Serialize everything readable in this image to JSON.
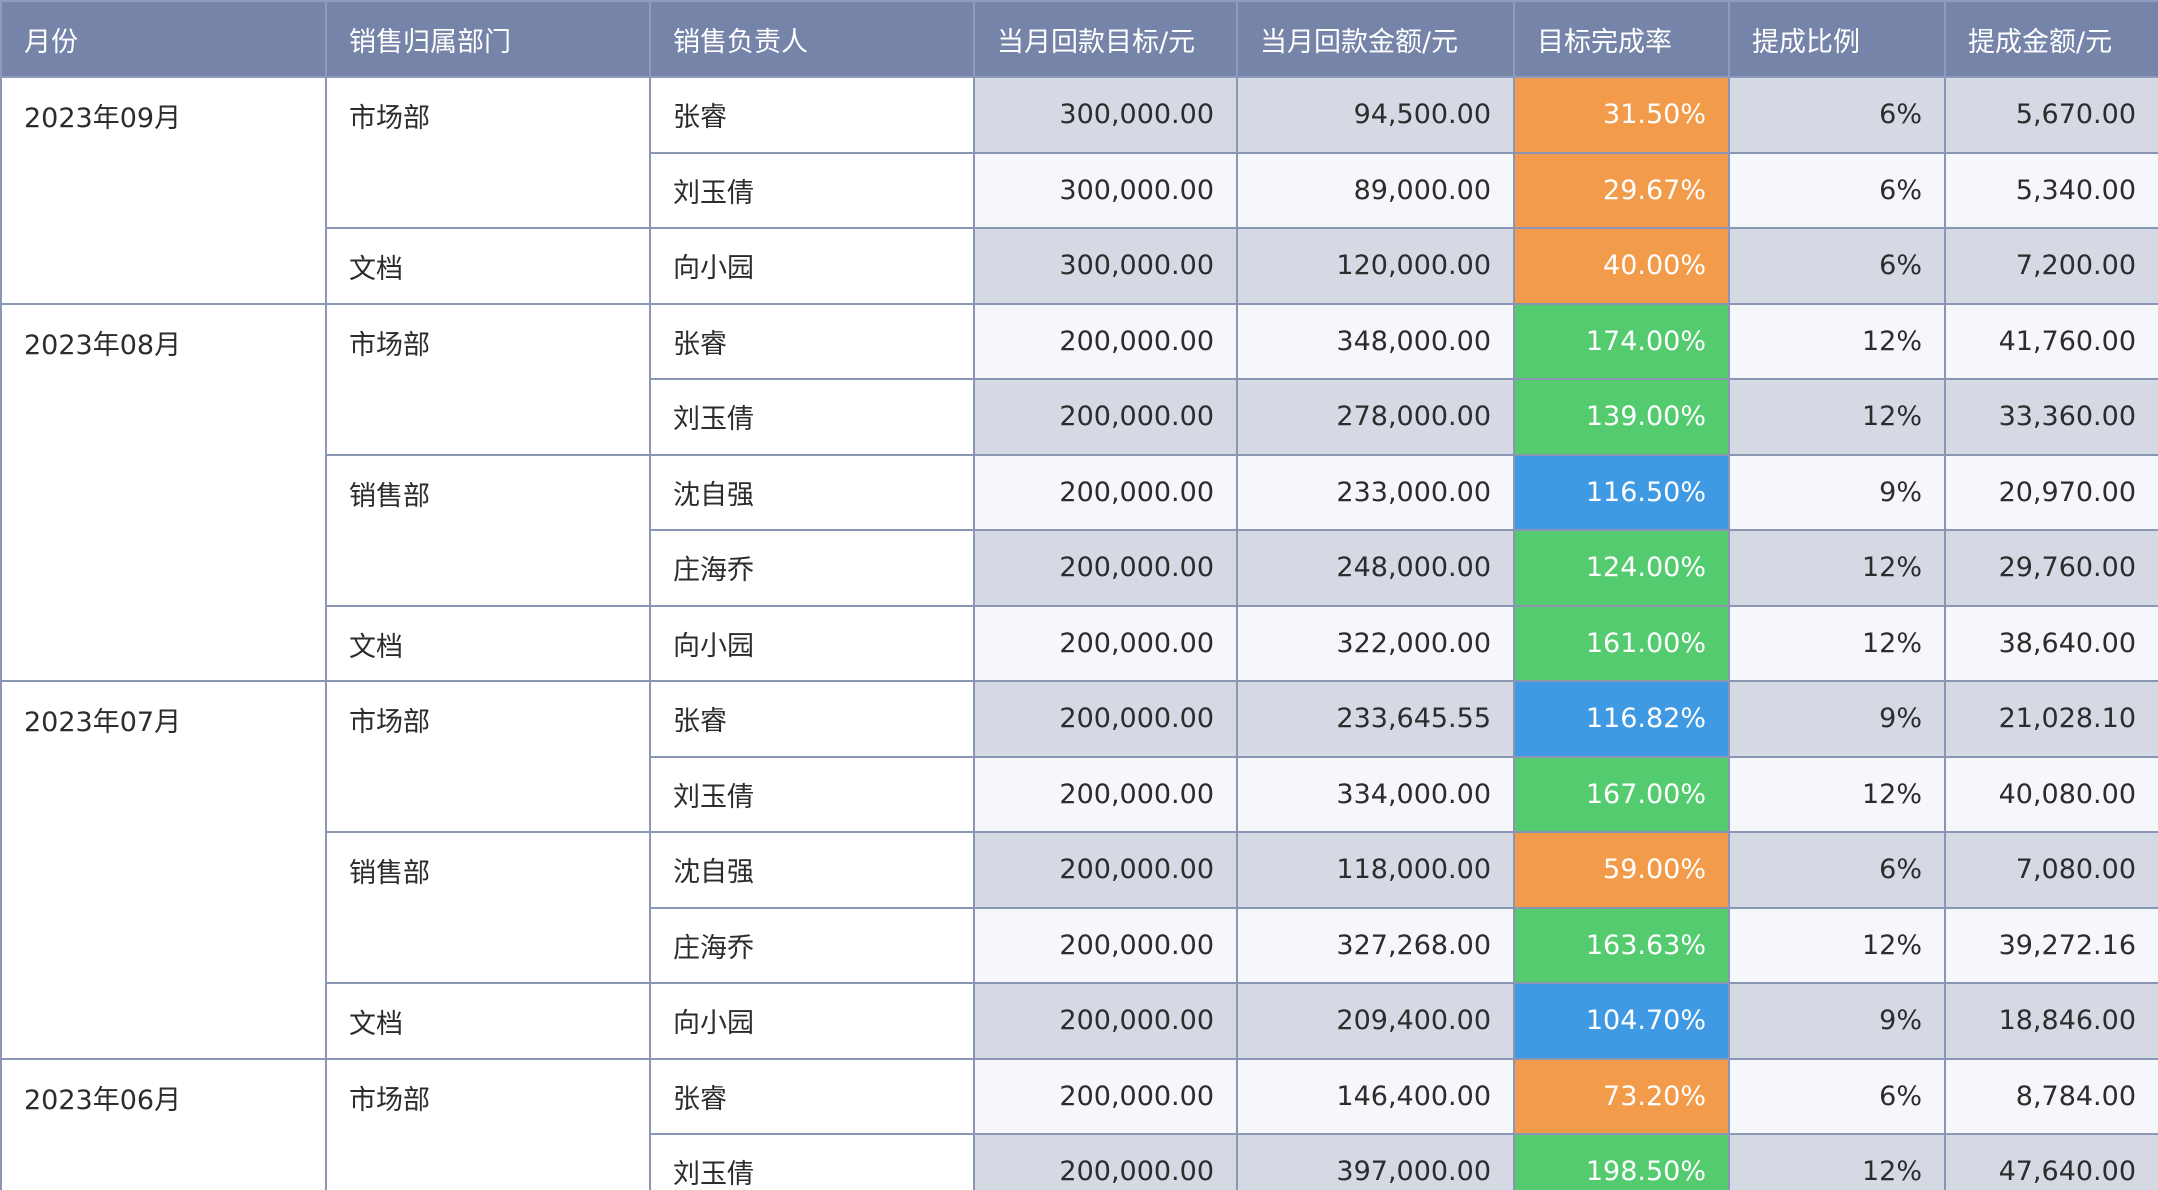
{
  "headers": {
    "month": "月份",
    "dept": "销售归属部门",
    "person": "销售负责人",
    "target": "当月回款目标/元",
    "amount": "当月回款金额/元",
    "rate": "目标完成率",
    "ratio": "提成比例",
    "commission": "提成金额/元"
  },
  "colors": {
    "header_bg": "#7584a8",
    "rate_low": "#f29b4b",
    "rate_mid": "#3f9ae3",
    "rate_high": "#55cb70",
    "stripe_dark": "#d5d9e3",
    "stripe_light": "#f5f7fa"
  },
  "months": [
    {
      "label": "2023年09月"
    },
    {
      "label": "2023年08月"
    },
    {
      "label": "2023年07月"
    },
    {
      "label": "2023年06月"
    }
  ],
  "depts": [
    {
      "label": "市场部"
    },
    {
      "label": "文档"
    },
    {
      "label": "市场部"
    },
    {
      "label": "销售部"
    },
    {
      "label": "文档"
    },
    {
      "label": "市场部"
    },
    {
      "label": "销售部"
    },
    {
      "label": "文档"
    },
    {
      "label": "市场部"
    }
  ],
  "rows": [
    {
      "person": "张睿",
      "target": "300,000.00",
      "amount": "94,500.00",
      "rate": "31.50%",
      "rate_level": "low",
      "ratio": "6%",
      "commission": "5,670.00"
    },
    {
      "person": "刘玉倩",
      "target": "300,000.00",
      "amount": "89,000.00",
      "rate": "29.67%",
      "rate_level": "low",
      "ratio": "6%",
      "commission": "5,340.00"
    },
    {
      "person": "向小园",
      "target": "300,000.00",
      "amount": "120,000.00",
      "rate": "40.00%",
      "rate_level": "low",
      "ratio": "6%",
      "commission": "7,200.00"
    },
    {
      "person": "张睿",
      "target": "200,000.00",
      "amount": "348,000.00",
      "rate": "174.00%",
      "rate_level": "high",
      "ratio": "12%",
      "commission": "41,760.00"
    },
    {
      "person": "刘玉倩",
      "target": "200,000.00",
      "amount": "278,000.00",
      "rate": "139.00%",
      "rate_level": "high",
      "ratio": "12%",
      "commission": "33,360.00"
    },
    {
      "person": "沈自强",
      "target": "200,000.00",
      "amount": "233,000.00",
      "rate": "116.50%",
      "rate_level": "mid",
      "ratio": "9%",
      "commission": "20,970.00"
    },
    {
      "person": "庄海乔",
      "target": "200,000.00",
      "amount": "248,000.00",
      "rate": "124.00%",
      "rate_level": "high",
      "ratio": "12%",
      "commission": "29,760.00"
    },
    {
      "person": "向小园",
      "target": "200,000.00",
      "amount": "322,000.00",
      "rate": "161.00%",
      "rate_level": "high",
      "ratio": "12%",
      "commission": "38,640.00"
    },
    {
      "person": "张睿",
      "target": "200,000.00",
      "amount": "233,645.55",
      "rate": "116.82%",
      "rate_level": "mid",
      "ratio": "9%",
      "commission": "21,028.10"
    },
    {
      "person": "刘玉倩",
      "target": "200,000.00",
      "amount": "334,000.00",
      "rate": "167.00%",
      "rate_level": "high",
      "ratio": "12%",
      "commission": "40,080.00"
    },
    {
      "person": "沈自强",
      "target": "200,000.00",
      "amount": "118,000.00",
      "rate": "59.00%",
      "rate_level": "low",
      "ratio": "6%",
      "commission": "7,080.00"
    },
    {
      "person": "庄海乔",
      "target": "200,000.00",
      "amount": "327,268.00",
      "rate": "163.63%",
      "rate_level": "high",
      "ratio": "12%",
      "commission": "39,272.16"
    },
    {
      "person": "向小园",
      "target": "200,000.00",
      "amount": "209,400.00",
      "rate": "104.70%",
      "rate_level": "mid",
      "ratio": "9%",
      "commission": "18,846.00"
    },
    {
      "person": "张睿",
      "target": "200,000.00",
      "amount": "146,400.00",
      "rate": "73.20%",
      "rate_level": "low",
      "ratio": "6%",
      "commission": "8,784.00"
    },
    {
      "person": "刘玉倩",
      "target": "200,000.00",
      "amount": "397,000.00",
      "rate": "198.50%",
      "rate_level": "high",
      "ratio": "12%",
      "commission": "47,640.00"
    }
  ]
}
